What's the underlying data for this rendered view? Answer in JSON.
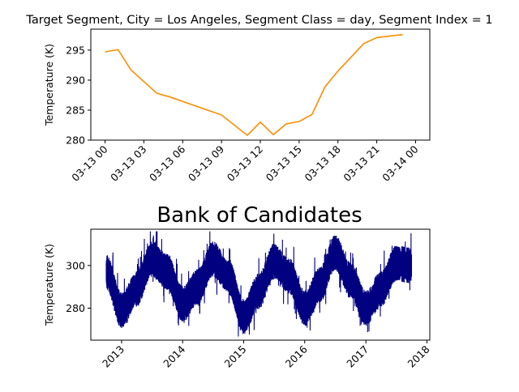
{
  "chart_data": [
    {
      "type": "line",
      "title": "Target Segment, City = Los Angeles, Segment Class = day, Segment Index = 1",
      "xlabel": "",
      "ylabel": "Temperature (K)",
      "line_color": "#ff8c00",
      "x": [
        "03-13 00:00",
        "03-13 01:00",
        "03-13 02:00",
        "03-13 04:00",
        "03-13 05:00",
        "03-13 09:00",
        "03-13 11:00",
        "03-13 12:00",
        "03-13 13:00",
        "03-13 14:00",
        "03-13 15:00",
        "03-13 16:00",
        "03-13 17:00",
        "03-13 18:00",
        "03-13 20:00",
        "03-13 21:00",
        "03-13 23:00"
      ],
      "values": [
        294.7,
        295.1,
        291.7,
        287.8,
        287.2,
        284.2,
        280.8,
        283.0,
        280.9,
        282.7,
        283.1,
        284.3,
        288.9,
        291.5,
        296.1,
        297.1,
        297.6
      ],
      "xticks": [
        "03-13 00",
        "03-13 03",
        "03-13 06",
        "03-13 09",
        "03-13 12",
        "03-13 15",
        "03-13 18",
        "03-13 21",
        "03-14 00"
      ],
      "yticks": [
        "280",
        "285",
        "290",
        "295"
      ],
      "ylim": [
        280,
        298.5
      ],
      "grid": false
    },
    {
      "type": "line",
      "title": "Bank of Candidates",
      "xlabel": "",
      "ylabel": "Temperature (K)",
      "line_color": "#000080",
      "x": [
        "2012-10",
        "2013-01",
        "2013-04",
        "2013-07",
        "2013-10",
        "2014-01",
        "2014-04",
        "2014-07",
        "2014-10",
        "2015-01",
        "2015-04",
        "2015-07",
        "2015-10",
        "2016-01",
        "2016-04",
        "2016-07",
        "2016-10",
        "2017-01",
        "2017-04",
        "2017-07",
        "2017-10"
      ],
      "values": [
        297,
        279,
        289,
        303,
        297,
        282,
        290,
        303,
        295,
        276,
        288,
        302,
        295,
        280,
        291,
        306,
        293,
        280,
        289,
        301,
        300
      ],
      "xticks": [
        "2013",
        "2014",
        "2015",
        "2016",
        "2017",
        "2018"
      ],
      "yticks": [
        "280",
        "300"
      ],
      "ylim": [
        265,
        317
      ],
      "grid": false
    }
  ]
}
